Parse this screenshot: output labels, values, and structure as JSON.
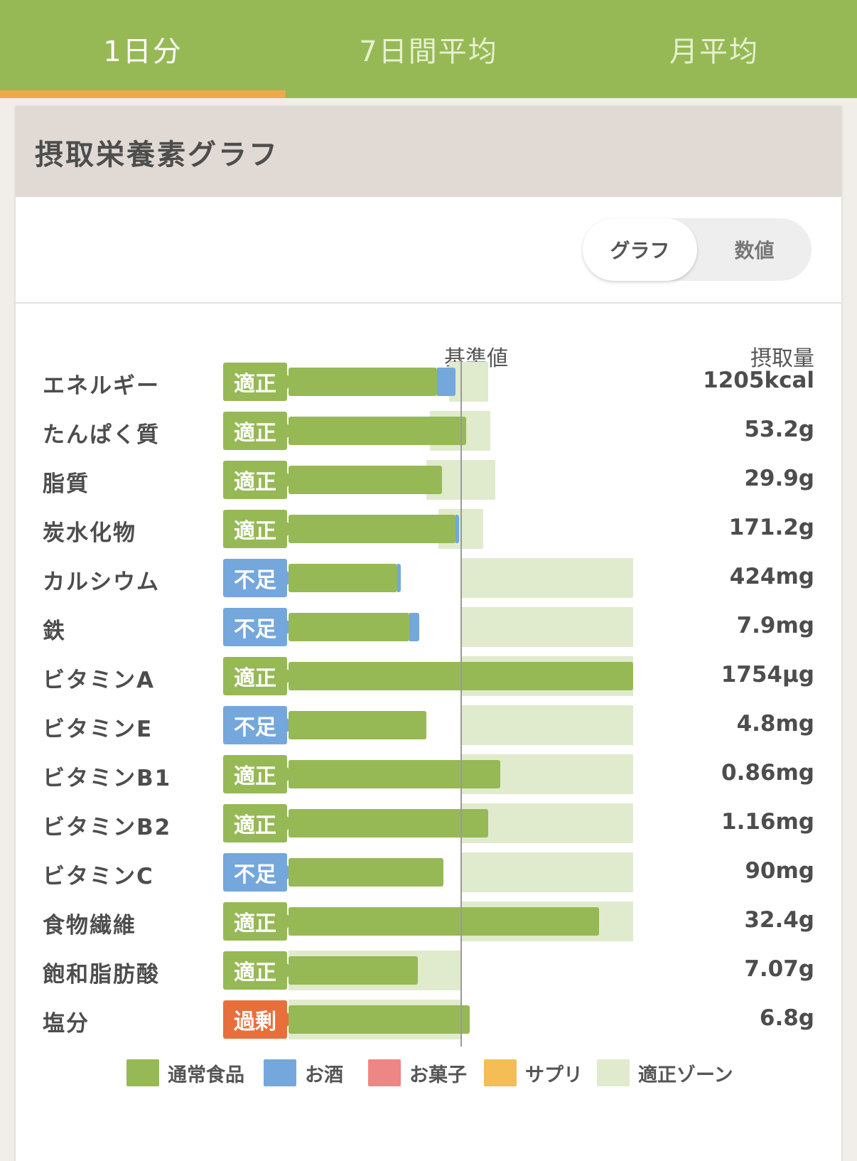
{
  "tabs": [
    {
      "label": "1日分",
      "active": true
    },
    {
      "label": "7日間平均",
      "active": false
    },
    {
      "label": "月平均",
      "active": false
    }
  ],
  "card": {
    "title": "摂取栄養素グラフ"
  },
  "toggle": {
    "graph_label": "グラフ",
    "value_label": "数値",
    "selected": "グラフ"
  },
  "columns": {
    "reference": "基準値",
    "intake": "摂取量"
  },
  "colors": {
    "tab_bg": "#96b955",
    "tab_indicator": "#f0a84a",
    "food": "#96b955",
    "alcohol": "#74a7dc",
    "snack": "#ec8785",
    "supplement": "#f4bd56",
    "zone": "#e0ebcd",
    "badge_ok": "#96b955",
    "badge_low": "#74a7dc",
    "badge_over": "#e86f3c"
  },
  "chart_data": {
    "type": "bar",
    "scale_note": "percent of reference value (100 = 基準値 line)",
    "rows": [
      {
        "name": "エネルギー",
        "status": "適正",
        "status_kind": "ok",
        "amount": "1205kcal",
        "food": 86,
        "alcohol": 11,
        "zone": [
          93,
          116
        ]
      },
      {
        "name": "たんぱく質",
        "status": "適正",
        "status_kind": "ok",
        "amount": "53.2g",
        "food": 103,
        "alcohol": 0,
        "zone": [
          82,
          117
        ]
      },
      {
        "name": "脂質",
        "status": "適正",
        "status_kind": "ok",
        "amount": "29.9g",
        "food": 89,
        "alcohol": 0,
        "zone": [
          80,
          120
        ]
      },
      {
        "name": "炭水化物",
        "status": "適正",
        "status_kind": "ok",
        "amount": "171.2g",
        "food": 97,
        "alcohol": 2,
        "zone": [
          87,
          113
        ]
      },
      {
        "name": "カルシウム",
        "status": "不足",
        "status_kind": "low",
        "amount": "424mg",
        "food": 63,
        "alcohol": 2,
        "zone": [
          100,
          200
        ]
      },
      {
        "name": "鉄",
        "status": "不足",
        "status_kind": "low",
        "amount": "7.9mg",
        "food": 70,
        "alcohol": 6,
        "zone": [
          100,
          200
        ]
      },
      {
        "name": "ビタミンA",
        "status": "適正",
        "status_kind": "ok",
        "amount": "1754μg",
        "food": 200,
        "alcohol": 0,
        "zone": [
          100,
          200
        ]
      },
      {
        "name": "ビタミンE",
        "status": "不足",
        "status_kind": "low",
        "amount": "4.8mg",
        "food": 80,
        "alcohol": 0,
        "zone": [
          100,
          200
        ]
      },
      {
        "name": "ビタミンB1",
        "status": "適正",
        "status_kind": "ok",
        "amount": "0.86mg",
        "food": 123,
        "alcohol": 0,
        "zone": [
          100,
          200
        ]
      },
      {
        "name": "ビタミンB2",
        "status": "適正",
        "status_kind": "ok",
        "amount": "1.16mg",
        "food": 116,
        "alcohol": 0,
        "zone": [
          100,
          200
        ]
      },
      {
        "name": "ビタミンC",
        "status": "不足",
        "status_kind": "low",
        "amount": "90mg",
        "food": 90,
        "alcohol": 0,
        "zone": [
          100,
          200
        ]
      },
      {
        "name": "食物繊維",
        "status": "適正",
        "status_kind": "ok",
        "amount": "32.4g",
        "food": 180,
        "alcohol": 0,
        "zone": [
          100,
          200
        ]
      },
      {
        "name": "飽和脂肪酸",
        "status": "適正",
        "status_kind": "ok",
        "amount": "7.07g",
        "food": 75,
        "alcohol": 0,
        "zone": [
          0,
          100
        ]
      },
      {
        "name": "塩分",
        "status": "過剰",
        "status_kind": "over",
        "amount": "6.8g",
        "food": 105,
        "alcohol": 0,
        "zone": [
          0,
          100
        ]
      }
    ]
  },
  "legend": [
    {
      "label": "通常食品",
      "color": "#96b955"
    },
    {
      "label": "お酒",
      "color": "#74a7dc"
    },
    {
      "label": "お菓子",
      "color": "#ec8785"
    },
    {
      "label": "サプリ",
      "color": "#f4bd56"
    },
    {
      "label": "適正ゾーン",
      "color": "#e0ebcd"
    }
  ]
}
